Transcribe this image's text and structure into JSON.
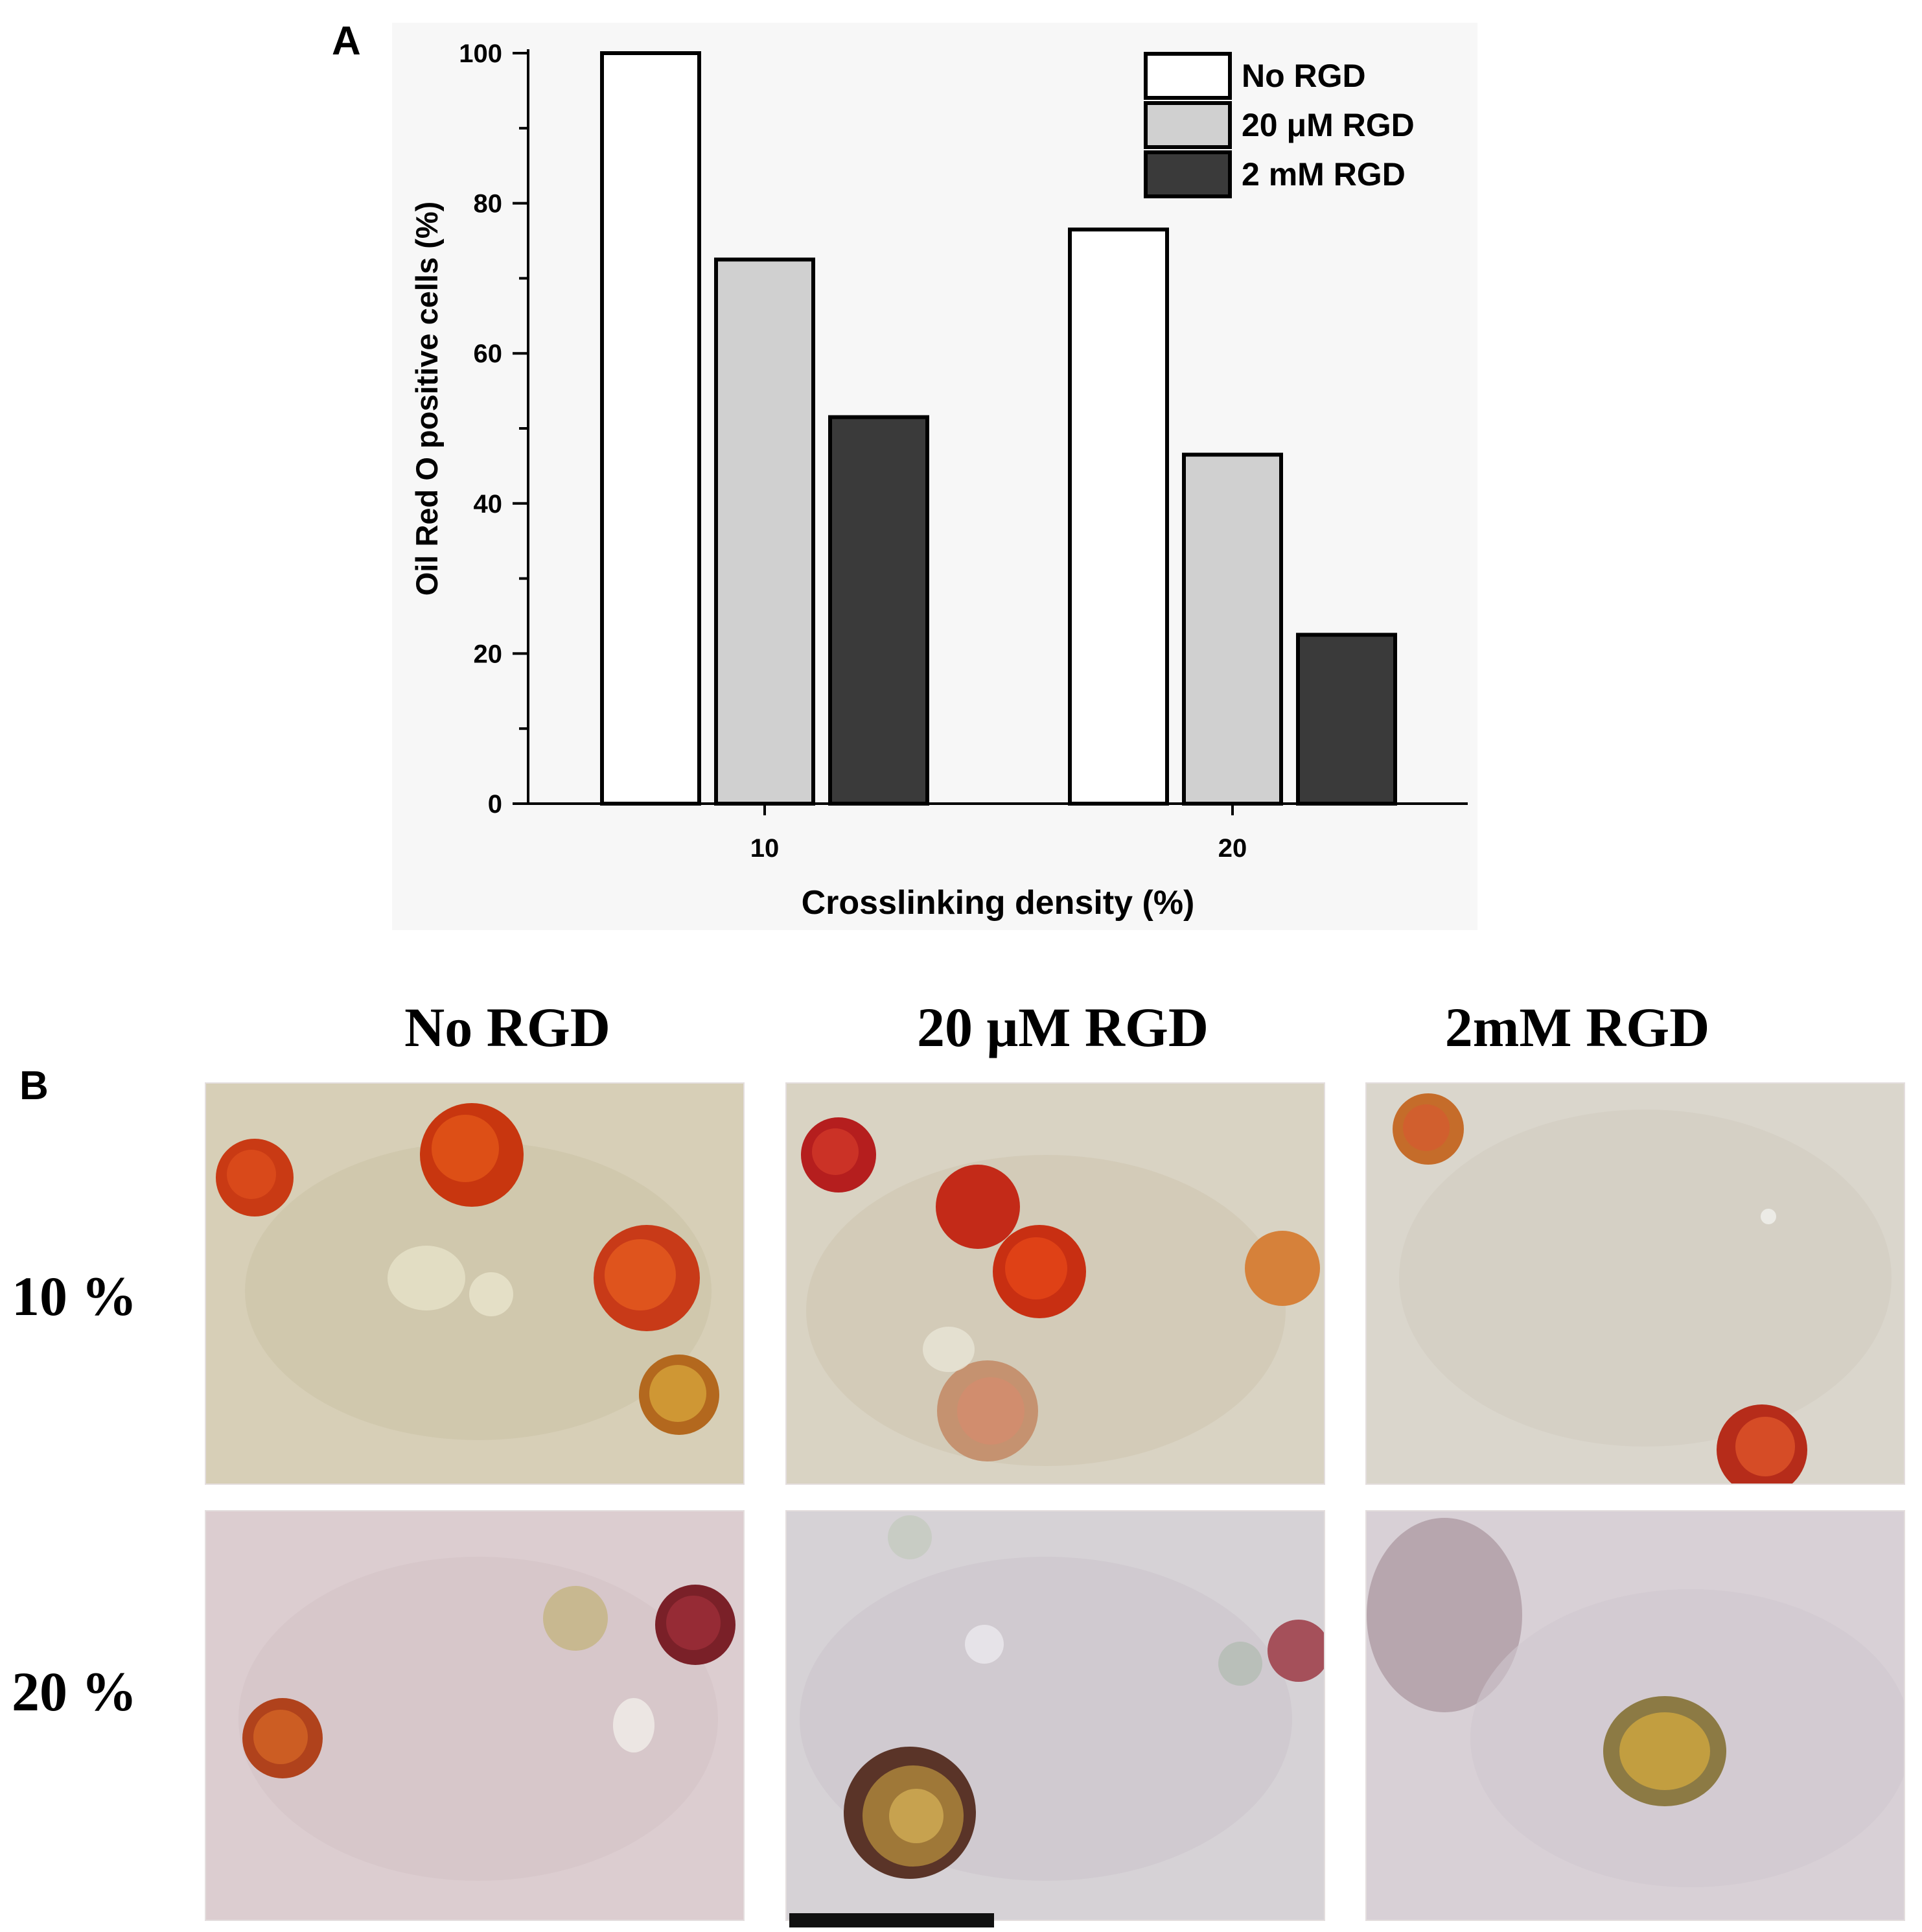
{
  "panel_a": {
    "letter": "A"
  },
  "panel_b": {
    "letter": "B",
    "column_headers": [
      "No RGD",
      "20 μM RGD",
      "2mM RGD"
    ],
    "row_headers": [
      "10 %",
      "20 %"
    ]
  },
  "chart_data": {
    "type": "bar",
    "categories": [
      "10",
      "20"
    ],
    "series": [
      {
        "name": "No RGD",
        "values": [
          100,
          76.5
        ],
        "color": "#ffffff"
      },
      {
        "name": "20 μM RGD",
        "values": [
          72.5,
          46.5
        ],
        "color": "#d0d0d0"
      },
      {
        "name": "2 mM RGD",
        "values": [
          51.5,
          22.5
        ],
        "color": "#3a3a3a"
      }
    ],
    "xlabel": "Crosslinking density (%)",
    "ylabel": "Oil Red O positive cells (%)",
    "ylim": [
      0,
      100
    ],
    "yticks": [
      0,
      20,
      40,
      60,
      80,
      100
    ],
    "legend_position": "top-right",
    "grid": false
  }
}
